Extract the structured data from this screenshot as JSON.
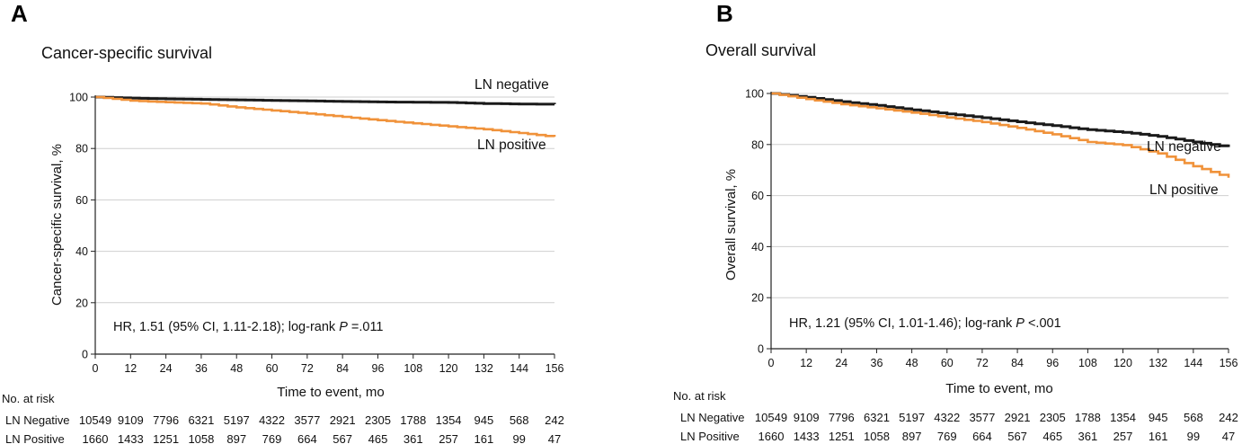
{
  "colors": {
    "negative": "#1a1a1a",
    "positive": "#f0923a",
    "grid": "#cfcfcf",
    "axis": "#222222"
  },
  "chart_data": [
    {
      "type": "line",
      "panel": "A",
      "title": "Cancer-specific survival",
      "xlabel": "Time to event, mo",
      "ylabel": "Cancer-specific survival, %",
      "xlim": [
        0,
        156
      ],
      "ylim": [
        0,
        100
      ],
      "xticks": [
        "0",
        "12",
        "24",
        "36",
        "48",
        "60",
        "72",
        "84",
        "96",
        "108",
        "120",
        "132",
        "144",
        "156"
      ],
      "yticks": [
        "0",
        "20",
        "40",
        "60",
        "80",
        "100"
      ],
      "grid": true,
      "annotation": {
        "text": "HR, 1.51 (95% CI, 1.11-2.18); log-rank ",
        "p_symbol": "P",
        "p_value": " =.011"
      },
      "series": [
        {
          "name": "LN negative",
          "color": "negative",
          "x": [
            0,
            12,
            24,
            36,
            48,
            60,
            72,
            84,
            96,
            108,
            120,
            132,
            144,
            156
          ],
          "y": [
            100,
            99.6,
            99.3,
            99.1,
            98.9,
            98.7,
            98.5,
            98.3,
            98.1,
            98.0,
            97.9,
            97.5,
            97.3,
            97.2
          ]
        },
        {
          "name": "LN positive",
          "color": "positive",
          "x": [
            0,
            12,
            24,
            36,
            48,
            60,
            72,
            84,
            96,
            108,
            120,
            132,
            144,
            156
          ],
          "y": [
            100,
            98.6,
            98.0,
            97.5,
            96.0,
            94.8,
            93.6,
            92.3,
            91.0,
            89.8,
            88.6,
            87.5,
            86.0,
            84.5
          ]
        }
      ],
      "at_risk": {
        "heading": "No. at risk",
        "rows": [
          {
            "label": "LN Negative",
            "values": [
              "10549",
              "9109",
              "7796",
              "6321",
              "5197",
              "4322",
              "3577",
              "2921",
              "2305",
              "1788",
              "1354",
              "945",
              "568",
              "242"
            ]
          },
          {
            "label": "LN Positive",
            "values": [
              "1660",
              "1433",
              "1251",
              "1058",
              "897",
              "769",
              "664",
              "567",
              "465",
              "361",
              "257",
              "161",
              "99",
              "47"
            ]
          }
        ]
      }
    },
    {
      "type": "line",
      "panel": "B",
      "title": "Overall survival",
      "xlabel": "Time to event, mo",
      "ylabel": "Overall survival, %",
      "xlim": [
        0,
        156
      ],
      "ylim": [
        0,
        100
      ],
      "xticks": [
        "0",
        "12",
        "24",
        "36",
        "48",
        "60",
        "72",
        "84",
        "96",
        "108",
        "120",
        "132",
        "144",
        "156"
      ],
      "yticks": [
        "0",
        "20",
        "40",
        "60",
        "80",
        "100"
      ],
      "grid": true,
      "annotation": {
        "text": "HR, 1.21 (95% CI, 1.01-1.46); log-rank ",
        "p_symbol": "P",
        "p_value": " <.001"
      },
      "series": [
        {
          "name": "LN negative",
          "color": "negative",
          "x": [
            0,
            12,
            24,
            36,
            48,
            60,
            72,
            84,
            96,
            108,
            120,
            132,
            144,
            156
          ],
          "y": [
            100,
            98.5,
            96.8,
            95.3,
            93.6,
            92.0,
            90.5,
            88.9,
            87.4,
            85.8,
            84.8,
            83.2,
            81.0,
            79.0
          ]
        },
        {
          "name": "LN positive",
          "color": "positive",
          "x": [
            0,
            12,
            24,
            36,
            48,
            60,
            72,
            84,
            96,
            108,
            120,
            132,
            144,
            156
          ],
          "y": [
            100,
            97.8,
            95.8,
            94.2,
            92.5,
            90.6,
            88.8,
            86.5,
            84.0,
            81.0,
            79.8,
            76.5,
            71.5,
            67.0
          ]
        }
      ],
      "at_risk": {
        "heading": "No. at risk",
        "rows": [
          {
            "label": "LN Negative",
            "values": [
              "10549",
              "9109",
              "7796",
              "6321",
              "5197",
              "4322",
              "3577",
              "2921",
              "2305",
              "1788",
              "1354",
              "945",
              "568",
              "242"
            ]
          },
          {
            "label": "LN Positive",
            "values": [
              "1660",
              "1433",
              "1251",
              "1058",
              "897",
              "769",
              "664",
              "567",
              "465",
              "361",
              "257",
              "161",
              "99",
              "47"
            ]
          }
        ]
      }
    }
  ]
}
